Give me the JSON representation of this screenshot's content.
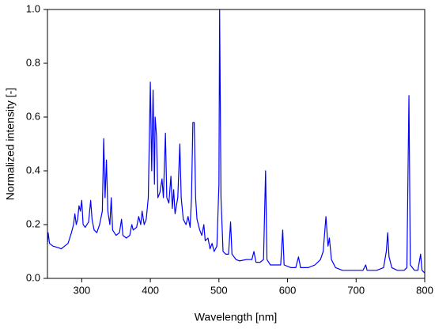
{
  "chart_data": {
    "type": "line",
    "xlabel": "Wavelength [nm]",
    "ylabel": "Normalized intensity [-]",
    "color": "#0000ff",
    "xlim": [
      250,
      800
    ],
    "xticks": [
      300,
      400,
      500,
      600,
      700,
      800
    ],
    "ylim": [
      0,
      1
    ],
    "yticks": [
      {
        "value": 0,
        "label": "0.0"
      },
      0.2,
      0.4,
      0.6,
      0.8,
      {
        "value": 1,
        "label": "1.0"
      }
    ],
    "x": [
      250,
      251,
      253,
      258,
      265,
      270,
      275,
      280,
      285,
      288,
      290,
      292,
      294,
      296,
      298,
      300,
      302,
      305,
      310,
      313,
      315,
      318,
      322,
      326,
      330,
      332,
      334,
      336,
      338,
      341,
      343,
      345,
      350,
      355,
      358,
      360,
      365,
      370,
      373,
      375,
      380,
      383,
      386,
      388,
      391,
      394,
      397,
      400,
      402,
      404,
      406,
      407,
      409,
      411,
      414,
      417,
      419,
      422,
      424,
      427,
      430,
      432,
      434,
      436,
      440,
      443,
      445,
      448,
      452,
      455,
      458,
      460,
      462,
      464,
      466,
      468,
      472,
      475,
      478,
      480,
      484,
      487,
      490,
      493,
      497,
      500,
      501,
      503,
      506,
      510,
      514,
      517,
      519,
      525,
      530,
      540,
      548,
      551,
      554,
      560,
      565,
      568,
      570,
      575,
      585,
      590,
      593,
      595,
      605,
      612,
      616,
      619,
      630,
      640,
      648,
      652,
      656,
      659,
      661,
      664,
      670,
      680,
      700,
      710,
      714,
      716,
      730,
      740,
      744,
      746,
      748,
      752,
      760,
      770,
      774,
      777,
      779,
      785,
      790,
      794,
      796,
      800
    ],
    "values": [
      0.13,
      0.17,
      0.13,
      0.12,
      0.115,
      0.11,
      0.12,
      0.13,
      0.17,
      0.2,
      0.24,
      0.2,
      0.22,
      0.27,
      0.25,
      0.29,
      0.2,
      0.19,
      0.21,
      0.29,
      0.22,
      0.18,
      0.17,
      0.2,
      0.25,
      0.52,
      0.3,
      0.44,
      0.25,
      0.2,
      0.3,
      0.18,
      0.16,
      0.17,
      0.22,
      0.16,
      0.15,
      0.16,
      0.2,
      0.18,
      0.19,
      0.23,
      0.2,
      0.25,
      0.2,
      0.22,
      0.3,
      0.73,
      0.4,
      0.7,
      0.35,
      0.6,
      0.53,
      0.3,
      0.32,
      0.37,
      0.3,
      0.54,
      0.3,
      0.28,
      0.38,
      0.26,
      0.33,
      0.24,
      0.3,
      0.5,
      0.3,
      0.22,
      0.2,
      0.23,
      0.19,
      0.3,
      0.58,
      0.58,
      0.3,
      0.22,
      0.18,
      0.16,
      0.2,
      0.14,
      0.15,
      0.11,
      0.13,
      0.1,
      0.12,
      0.35,
      1.0,
      0.3,
      0.1,
      0.09,
      0.09,
      0.21,
      0.09,
      0.07,
      0.065,
      0.07,
      0.07,
      0.1,
      0.06,
      0.06,
      0.07,
      0.4,
      0.07,
      0.05,
      0.05,
      0.05,
      0.18,
      0.05,
      0.04,
      0.04,
      0.08,
      0.04,
      0.04,
      0.05,
      0.07,
      0.1,
      0.23,
      0.12,
      0.15,
      0.07,
      0.04,
      0.03,
      0.03,
      0.03,
      0.05,
      0.03,
      0.03,
      0.04,
      0.1,
      0.17,
      0.08,
      0.04,
      0.03,
      0.03,
      0.04,
      0.68,
      0.05,
      0.03,
      0.03,
      0.09,
      0.03,
      0.02
    ]
  }
}
